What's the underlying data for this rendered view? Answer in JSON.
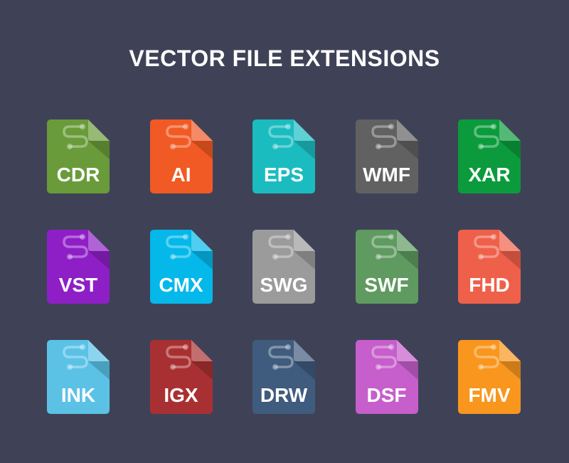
{
  "title": "VECTOR FILE EXTENSIONS",
  "icons": [
    {
      "label": "CDR",
      "color": "#6a9b3a",
      "icon": "file-icon"
    },
    {
      "label": "AI",
      "color": "#f15a24",
      "icon": "file-icon"
    },
    {
      "label": "EPS",
      "color": "#1bbcc0",
      "icon": "file-icon"
    },
    {
      "label": "WMF",
      "color": "#616161",
      "icon": "file-icon"
    },
    {
      "label": "XAR",
      "color": "#0b9b3c",
      "icon": "file-icon"
    },
    {
      "label": "VST",
      "color": "#8e1fc6",
      "icon": "file-icon"
    },
    {
      "label": "CMX",
      "color": "#05b8ea",
      "icon": "file-icon"
    },
    {
      "label": "SWG",
      "color": "#9b9b9b",
      "icon": "file-icon"
    },
    {
      "label": "SWF",
      "color": "#5f9a60",
      "icon": "file-icon"
    },
    {
      "label": "FHD",
      "color": "#ee604a",
      "icon": "file-icon"
    },
    {
      "label": "INK",
      "color": "#5bc2e6",
      "icon": "file-icon"
    },
    {
      "label": "IGX",
      "color": "#a93032",
      "icon": "file-icon"
    },
    {
      "label": "DRW",
      "color": "#3f5b7d",
      "icon": "file-icon"
    },
    {
      "label": "DSF",
      "color": "#c65ecb",
      "icon": "file-icon"
    },
    {
      "label": "FMV",
      "color": "#f8961e",
      "icon": "file-icon"
    }
  ]
}
